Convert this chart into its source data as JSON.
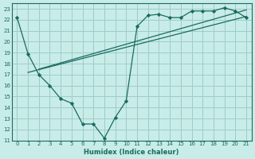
{
  "xlabel": "Humidex (Indice chaleur)",
  "xlim": [
    -0.5,
    21.5
  ],
  "ylim": [
    11,
    23.5
  ],
  "yticks": [
    11,
    12,
    13,
    14,
    15,
    16,
    17,
    18,
    19,
    20,
    21,
    22,
    23
  ],
  "xticks": [
    0,
    1,
    2,
    3,
    4,
    5,
    6,
    7,
    8,
    9,
    10,
    11,
    12,
    13,
    14,
    15,
    16,
    17,
    18,
    19,
    20,
    21
  ],
  "bg_color": "#c8ece8",
  "grid_color": "#a0ccc8",
  "line_color": "#1a6b60",
  "line1_x": [
    0,
    1,
    2,
    3,
    4,
    5,
    6,
    7,
    8,
    9,
    10,
    11,
    12,
    13,
    14,
    15,
    16,
    17,
    18,
    19,
    20,
    21
  ],
  "line1_y": [
    22.2,
    18.9,
    17.0,
    16.0,
    14.8,
    14.4,
    12.5,
    12.5,
    11.2,
    13.1,
    14.6,
    21.4,
    22.4,
    22.5,
    22.2,
    22.2,
    22.8,
    22.8,
    22.8,
    23.1,
    22.8,
    22.2
  ],
  "line2_x": [
    1,
    21
  ],
  "line2_y": [
    17.2,
    22.3
  ],
  "line3_x": [
    2,
    21
  ],
  "line3_y": [
    17.5,
    22.9
  ]
}
